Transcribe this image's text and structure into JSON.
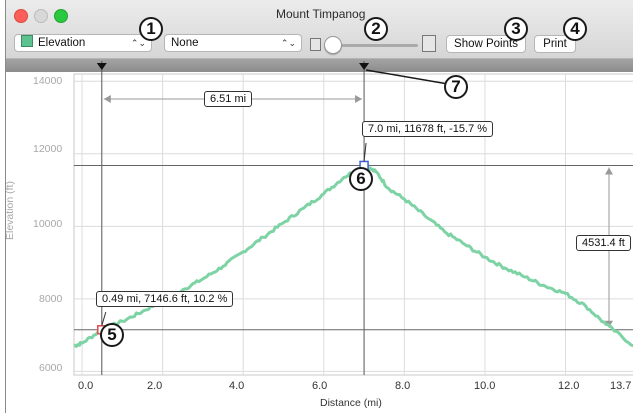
{
  "window": {
    "title": "Mount Timpanog"
  },
  "toolbar": {
    "series_select": "Elevation",
    "compare_select": "None",
    "show_points_label": "Show Points",
    "print_label": "Print"
  },
  "callouts": [
    "1",
    "2",
    "3",
    "4",
    "5",
    "6",
    "7"
  ],
  "measure": {
    "distance_label": "6.51 mi",
    "elevation_diff_label": "4531.4 ft"
  },
  "point_labels": {
    "peak": "7.0 mi, 11678 ft, -15.7 %",
    "start": "0.49 mi, 7146.6 ft, 10.2 %"
  },
  "colors": {
    "series": "#7ed3a5",
    "marker_start": "#e34b4b",
    "marker_peak": "#3c5fd8",
    "grid": "#dcdcdc"
  },
  "chart_data": {
    "type": "area",
    "xlabel": "Distance (mi)",
    "ylabel": "Elevation (ft)",
    "x_ticks": [
      "0.0",
      "2.0",
      "4.0",
      "6.0",
      "8.0",
      "10.0",
      "12.0",
      "13.7"
    ],
    "y_ticks": [
      "6000",
      "8000",
      "10000",
      "12000",
      "14000"
    ],
    "xlim": [
      -0.2,
      13.7
    ],
    "ylim": [
      5900,
      14200
    ],
    "series": [
      {
        "points": [
          [
            -0.2,
            6700
          ],
          [
            0,
            6780
          ],
          [
            0.49,
            7146.6
          ],
          [
            1,
            7380
          ],
          [
            1.5,
            7650
          ],
          [
            2,
            7950
          ],
          [
            2.5,
            8250
          ],
          [
            3,
            8550
          ],
          [
            3.5,
            8900
          ],
          [
            4,
            9300
          ],
          [
            4.5,
            9700
          ],
          [
            5,
            10100
          ],
          [
            5.5,
            10500
          ],
          [
            6,
            10900
          ],
          [
            6.5,
            11350
          ],
          [
            7.0,
            11678
          ],
          [
            7.3,
            11500
          ],
          [
            7.6,
            11050
          ],
          [
            8,
            10750
          ],
          [
            8.5,
            10300
          ],
          [
            9,
            9850
          ],
          [
            9.5,
            9500
          ],
          [
            10,
            9150
          ],
          [
            10.5,
            8850
          ],
          [
            11,
            8600
          ],
          [
            11.5,
            8350
          ],
          [
            12,
            8150
          ],
          [
            12.5,
            7800
          ],
          [
            13,
            7300
          ],
          [
            13.7,
            6700
          ]
        ]
      }
    ],
    "selection": {
      "start_x": 0.49,
      "end_x": 7.0
    }
  }
}
